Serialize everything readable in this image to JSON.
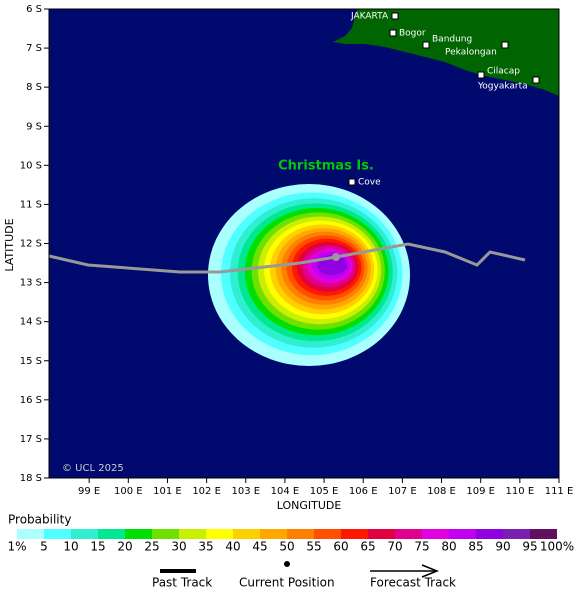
{
  "map": {
    "yticks": [
      "6 S",
      "7 S",
      "8 S",
      "9 S",
      "10 S",
      "11 S",
      "12 S",
      "13 S",
      "14 S",
      "15 S",
      "16 S",
      "17 S",
      "18 S"
    ],
    "xticks": [
      "99 E",
      "100 E",
      "101 E",
      "102 E",
      "103 E",
      "104 E",
      "105 E",
      "106 E",
      "107 E",
      "108 E",
      "109 E",
      "110 E",
      "111 E"
    ],
    "ylabel": "LATITUDE",
    "xlabel": "LONGITUDE",
    "places": [
      "JAKARTA",
      "Bogor",
      "Bandung",
      "Pekalongan",
      "Cilacap",
      "Yogyakarta",
      "Cove"
    ],
    "island_label": "Christmas Is.",
    "copyright": "© UCL 2025"
  },
  "legend": {
    "title": "Probability",
    "labels": [
      "1%",
      "5",
      "10",
      "15",
      "20",
      "25",
      "30",
      "35",
      "40",
      "45",
      "50",
      "55",
      "60",
      "65",
      "70",
      "75",
      "80",
      "85",
      "90",
      "95",
      "100%"
    ],
    "colors": [
      "#aaffff",
      "#50ffff",
      "#30eed0",
      "#00e890",
      "#00e000",
      "#70e000",
      "#c8f000",
      "#ffff00",
      "#ffd000",
      "#ffa800",
      "#ff8000",
      "#ff5000",
      "#ff1800",
      "#e00040",
      "#e00090",
      "#e000e0",
      "#c000f0",
      "#9000e0",
      "#7a20b0",
      "#601060"
    ],
    "track": [
      "Past Track",
      "Current Position",
      "Forecast Track"
    ]
  }
}
